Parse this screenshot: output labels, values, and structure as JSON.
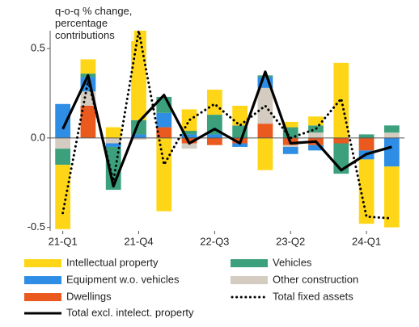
{
  "chart_data": {
    "type": "bar",
    "y_label": "q-o-q % change, percentage contributions",
    "categories": [
      "21-Q1",
      null,
      null,
      "21-Q4",
      null,
      null,
      "22-Q3",
      null,
      null,
      "23-Q2",
      null,
      null,
      "24-Q1",
      null
    ],
    "ylim": [
      -0.52,
      0.6
    ],
    "yticks": [
      -0.5,
      {
        "value": 0,
        "label": "0.0"
      },
      0.5
    ],
    "stacked": true,
    "series": [
      {
        "name": "Intellectual property",
        "color": "#ffd617",
        "values": [
          -0.36,
          0.08,
          0.06,
          0.5,
          -0.41,
          0.12,
          0.14,
          0.11,
          -0.18,
          0.03,
          0.05,
          0.42,
          -0.36,
          -0.34
        ]
      },
      {
        "name": "Vehicles",
        "color": "#3ca07d",
        "values": [
          -0.09,
          0.02,
          -0.24,
          0.08,
          0.09,
          0.02,
          0.11,
          0.07,
          0.01,
          0.06,
          0.04,
          -0.17,
          0.02,
          0.04
        ]
      },
      {
        "name": "Equipment w.o. vehicles",
        "color": "#2e8de5",
        "values": [
          0.19,
          0.08,
          -0.02,
          0.02,
          0.08,
          0.02,
          0.02,
          -0.02,
          0.06,
          -0.04,
          -0.03,
          0,
          -0.05,
          -0.16
        ]
      },
      {
        "name": "Other construction",
        "color": "#d4ccc0",
        "values": [
          -0.06,
          0.08,
          -0.03,
          -0.01,
          0,
          -0.03,
          0,
          0,
          0.2,
          -0.01,
          0.03,
          0,
          0,
          0.03
        ]
      },
      {
        "name": "Dwellings",
        "color": "#ea5a1e",
        "values": [
          0,
          0.18,
          0,
          0,
          0.06,
          -0.03,
          -0.04,
          -0.03,
          0.08,
          -0.04,
          -0.04,
          -0.03,
          -0.07,
          0
        ]
      },
      {
        "name": "Total fixed assets",
        "type": "line",
        "style": "dotted",
        "color": "#000000",
        "values": [
          -0.42,
          0.32,
          -0.24,
          0.6,
          -0.15,
          0.1,
          0.19,
          0.07,
          0.18,
          0,
          0.05,
          0.22,
          -0.44,
          -0.45
        ]
      },
      {
        "name": "Total excl. intelect. property",
        "type": "line",
        "style": "solid",
        "color": "#000000",
        "values": [
          0.05,
          0.35,
          -0.27,
          0.09,
          0.24,
          -0.03,
          0.05,
          -0.03,
          0.37,
          -0.03,
          -0.02,
          -0.18,
          -0.09,
          -0.05
        ]
      }
    ]
  }
}
